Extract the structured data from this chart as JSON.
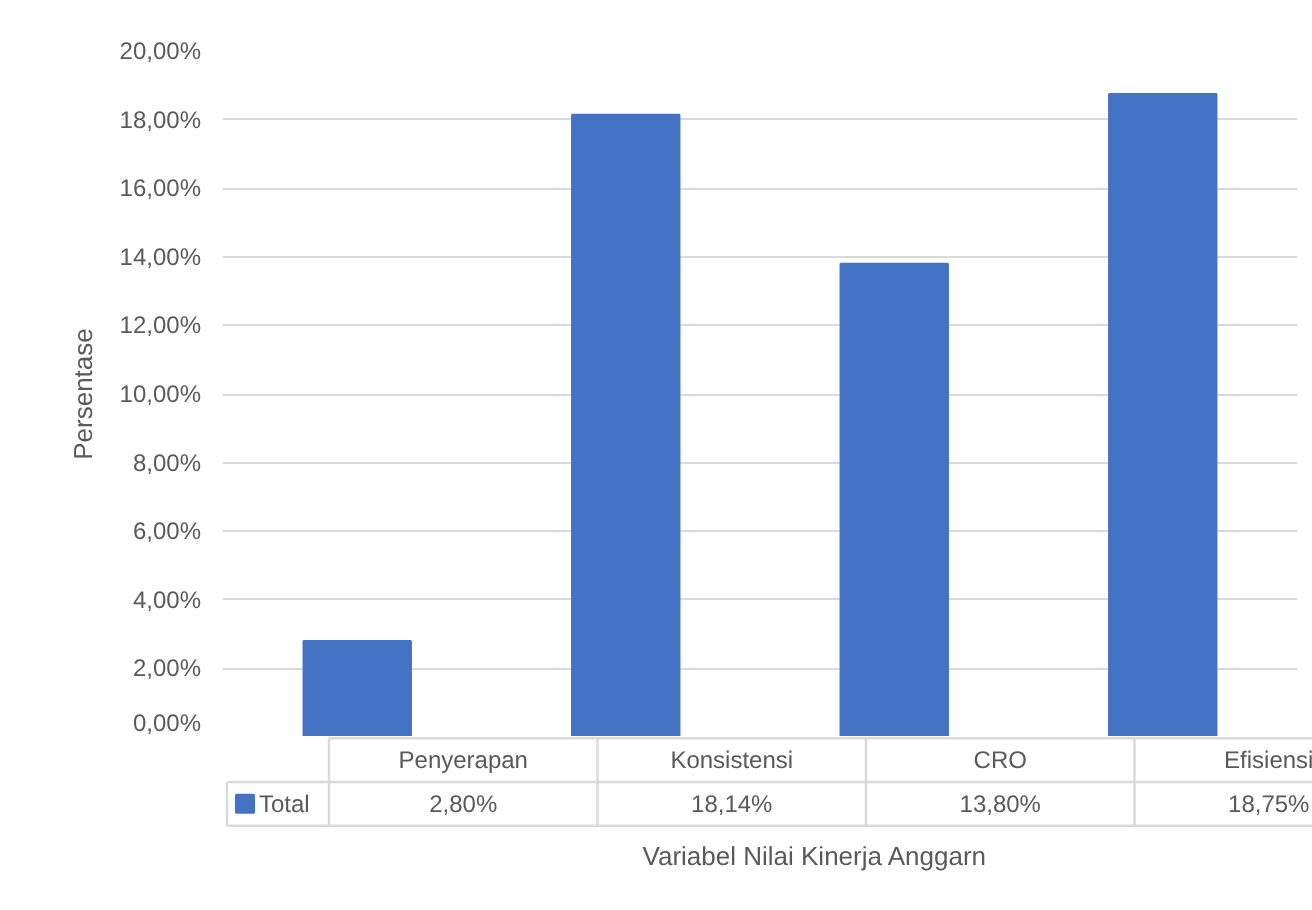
{
  "chart_data": {
    "type": "bar",
    "xlabel": "Variabel Nilai Kinerja Anggarn",
    "ylabel": "Persentase",
    "categories": [
      "Penyerapan",
      "Konsistensi",
      "CRO",
      "Efisiensi"
    ],
    "series": [
      {
        "name": "Total",
        "color": "#4472c4",
        "values": [
          2.8,
          18.14,
          13.8,
          18.75
        ],
        "value_labels": [
          "2,80%",
          "18,14%",
          "13,80%",
          "18,75%"
        ]
      }
    ],
    "ylim": [
      0,
      20
    ],
    "yticks": [
      {
        "value": 0,
        "label": "0,00%"
      },
      {
        "value": 2,
        "label": "2,00%"
      },
      {
        "value": 4,
        "label": "4,00%"
      },
      {
        "value": 6,
        "label": "6,00%"
      },
      {
        "value": 8,
        "label": "8,00%"
      },
      {
        "value": 10,
        "label": "10,00%"
      },
      {
        "value": 12,
        "label": "12,00%"
      },
      {
        "value": 14,
        "label": "14,00%"
      },
      {
        "value": 16,
        "label": "16,00%"
      },
      {
        "value": 18,
        "label": "18,00%"
      },
      {
        "value": 20,
        "label": "20,00%"
      }
    ],
    "grid": "y",
    "legend": "bottom left"
  }
}
